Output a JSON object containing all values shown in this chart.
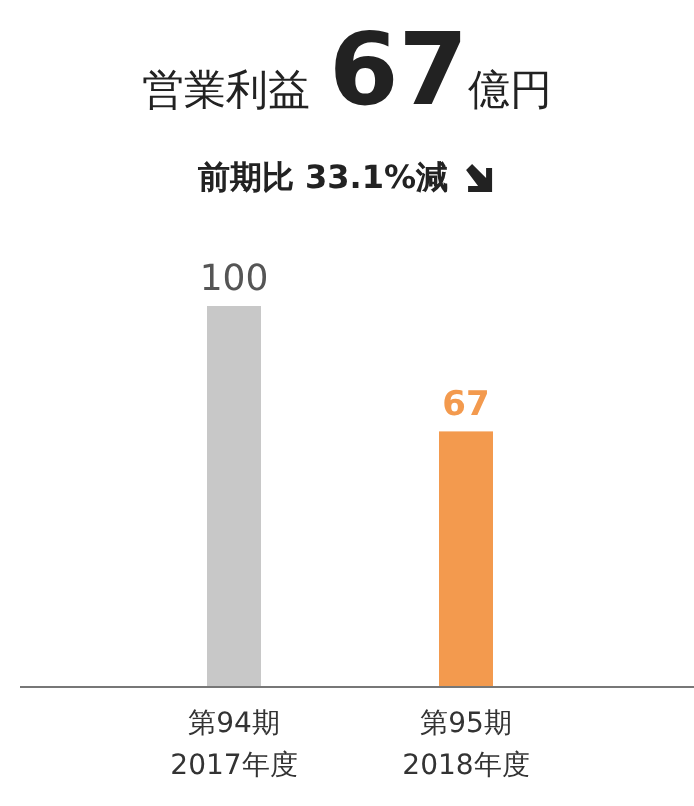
{
  "chart_data": {
    "type": "bar",
    "title": "営業利益 67億円",
    "subtitle": "前期比 33.1%減",
    "categories": [
      "第94期\n2017年度",
      "第95期\n2018年度"
    ],
    "values": [
      100,
      67
    ],
    "colors": [
      "#c8c8c8",
      "#f39a4e"
    ],
    "data_labels": true
  }
}
